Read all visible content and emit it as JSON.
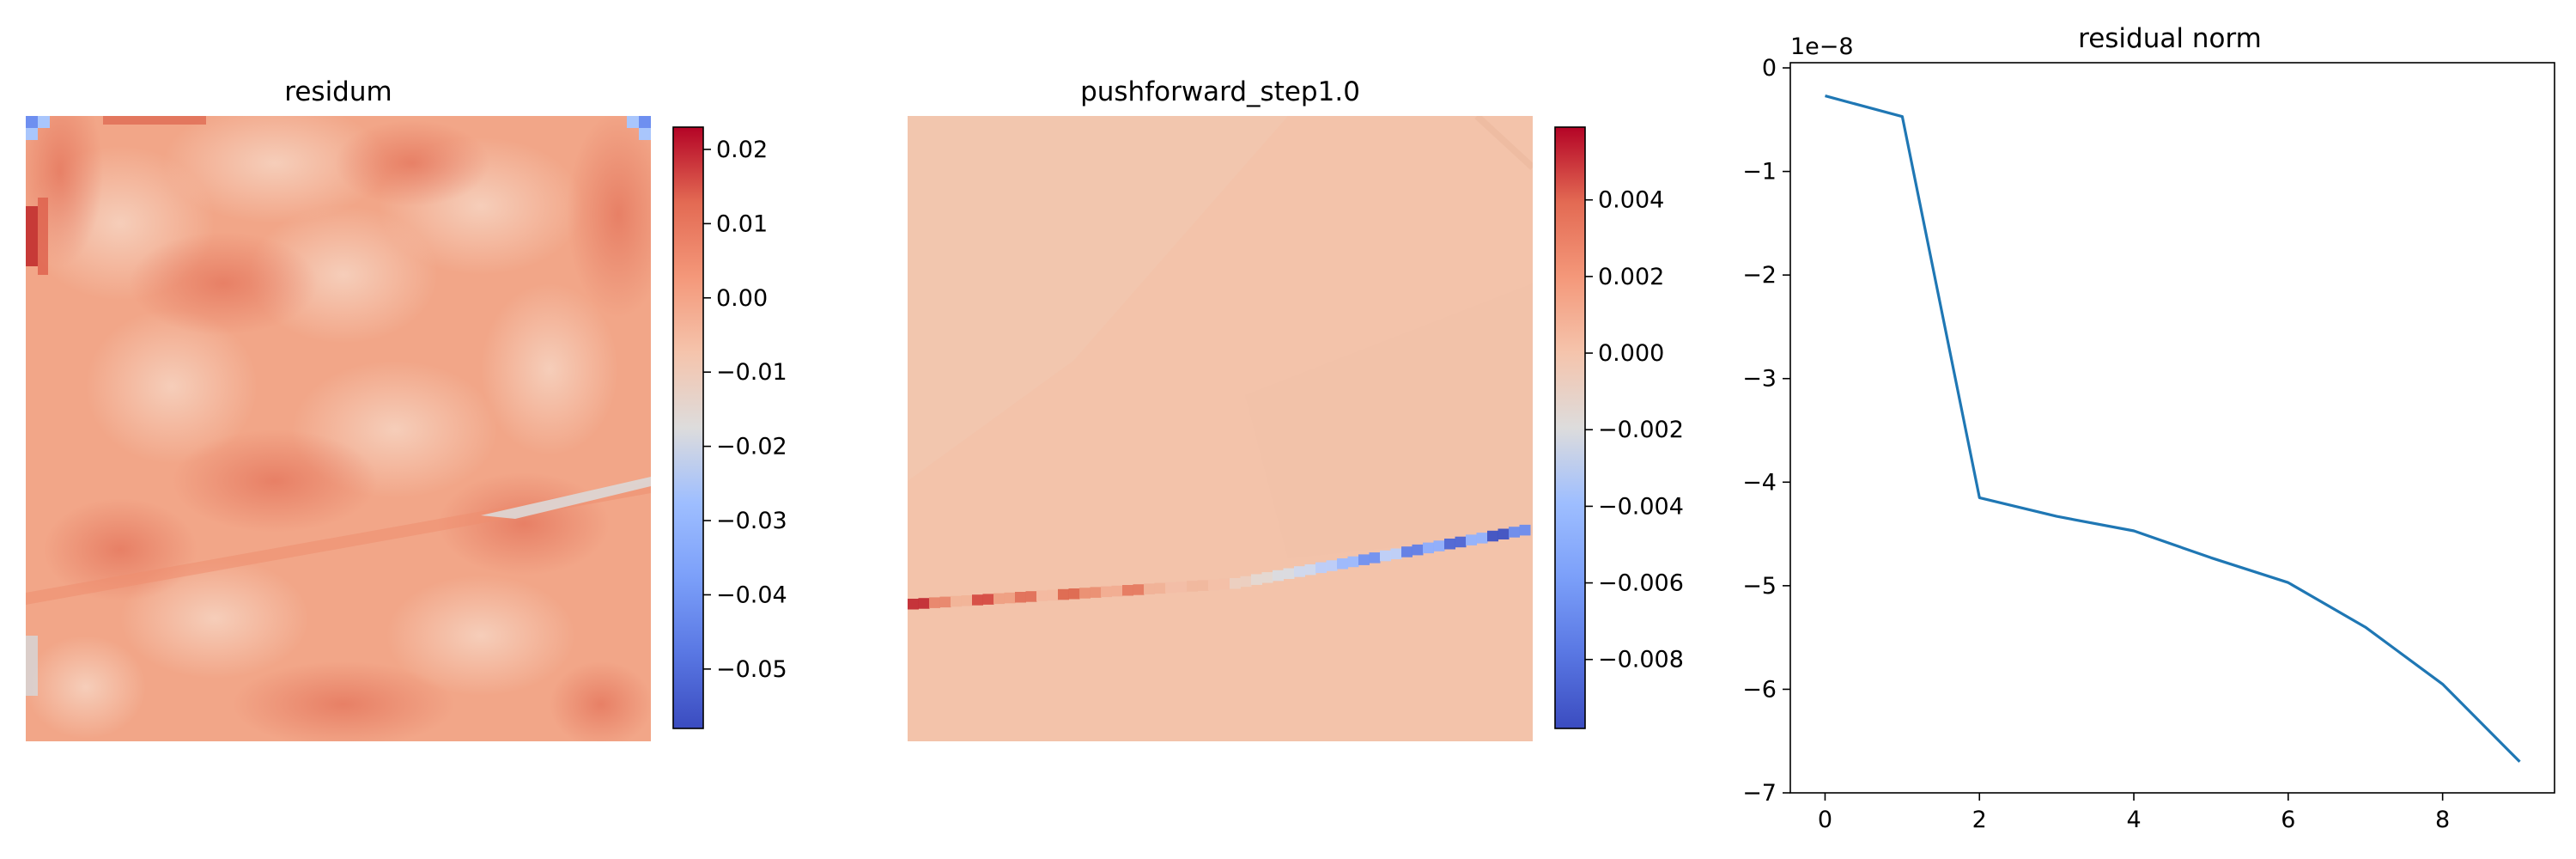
{
  "chart_data": [
    {
      "type": "heatmap",
      "title": "residum",
      "colormap": "coolwarm",
      "vmin": -0.058,
      "vmax": 0.023,
      "colorbar_ticks": [
        "0.02",
        "0.01",
        "0.00",
        "−0.01",
        "−0.02",
        "−0.03",
        "−0.04",
        "−0.05"
      ],
      "colorbar_values": [
        0.02,
        0.01,
        0.0,
        -0.01,
        -0.02,
        -0.03,
        -0.04,
        -0.05
      ]
    },
    {
      "type": "heatmap",
      "title": "pushforward_step1.0",
      "colormap": "coolwarm",
      "vmin": -0.0098,
      "vmax": 0.0059,
      "colorbar_ticks": [
        "0.004",
        "0.002",
        "0.000",
        "−0.002",
        "−0.004",
        "−0.006",
        "−0.008"
      ],
      "colorbar_values": [
        0.004,
        0.002,
        0.0,
        -0.002,
        -0.004,
        -0.006,
        -0.008
      ]
    },
    {
      "type": "line",
      "title": "residual norm",
      "offset_label": "1e−8",
      "x": [
        0,
        1,
        2,
        3,
        4,
        5,
        6,
        7,
        8,
        9
      ],
      "y": [
        -0.27,
        -0.47,
        -4.15,
        -4.33,
        -4.47,
        -4.73,
        -4.97,
        -5.4,
        -5.95,
        -6.7
      ],
      "xlim": [
        -0.45,
        9.45
      ],
      "ylim": [
        -7.0,
        0.05
      ],
      "xticks": [
        0,
        2,
        4,
        6,
        8
      ],
      "xtick_labels": [
        "0",
        "2",
        "4",
        "6",
        "8"
      ],
      "yticks": [
        0,
        -1,
        -2,
        -3,
        -4,
        -5,
        -6,
        -7
      ],
      "ytick_labels": [
        "0",
        "−1",
        "−2",
        "−3",
        "−4",
        "−5",
        "−6",
        "−7"
      ],
      "line_color": "#1f77b4",
      "grid": false
    }
  ]
}
